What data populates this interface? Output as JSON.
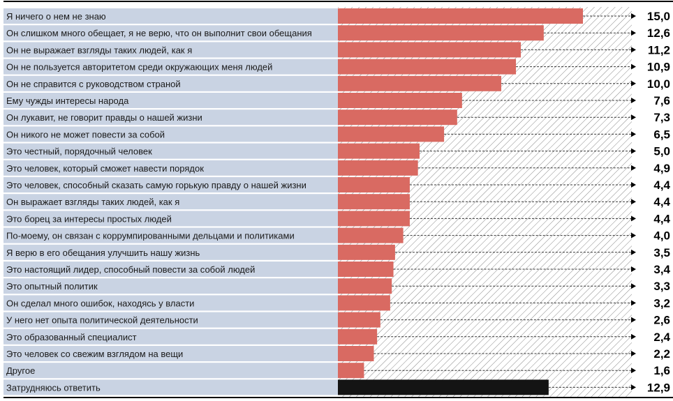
{
  "chart_data": {
    "type": "bar",
    "orientation": "horizontal",
    "categories": [
      "Я ничего о нем не знаю",
      "Он слишком много обещает, я не верю, что он выполнит свои обещания",
      "Он не выражает взгляды таких людей, как я",
      "Он не пользуется авторитетом среди окружающих меня людей",
      "Он не справится с руководством страной",
      "Ему чужды интересы народа",
      "Он лукавит, не говорит правды о нашей жизни",
      "Он никого не может повести за собой",
      "Это честный, порядочный человек",
      "Это человек, который сможет навести порядок",
      "Это человек, способный сказать самую горькую правду о нашей жизни",
      "Он выражает взгляды таких людей, как я",
      "Это борец за интересы простых людей",
      "По-моему, он связан с коррумпированными дельцами и политиками",
      "Я верю в его обещания улучшить нашу жизнь",
      "Это настоящий лидер, способный повести за собой людей",
      "Это опытный политик",
      "Он сделал много ошибок, находясь у власти",
      "У него нет опыта политической деятельности",
      "Это образованный специалист",
      "Это человек со свежим взглядом на вещи",
      "Другое",
      "Затрудняюсь ответить"
    ],
    "values": [
      15.0,
      12.6,
      11.2,
      10.9,
      10.0,
      7.6,
      7.3,
      6.5,
      5.0,
      4.9,
      4.4,
      4.4,
      4.4,
      4.0,
      3.5,
      3.4,
      3.3,
      3.2,
      2.6,
      2.4,
      2.2,
      1.6,
      12.9
    ],
    "value_labels": [
      "15,0",
      "12,6",
      "11,2",
      "10,9",
      "10,0",
      "7,6",
      "7,3",
      "6,5",
      "5,0",
      "4,9",
      "4,4",
      "4,4",
      "4,4",
      "4,0",
      "3,5",
      "3,4",
      "3,3",
      "3,2",
      "2,6",
      "2,4",
      "2,2",
      "1,6",
      "12,9"
    ],
    "xlim": [
      0,
      18
    ],
    "colors": {
      "bar": "#d96a62",
      "highlight_bar": "#141414",
      "row_band": "#c9d3e3",
      "hatch": "#888888"
    },
    "highlight_index": 22
  }
}
